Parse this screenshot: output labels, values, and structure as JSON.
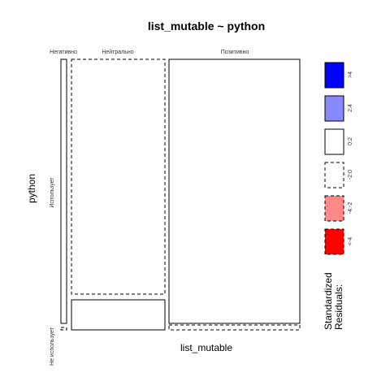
{
  "chart_data": {
    "type": "mosaic",
    "title": "list_mutable ~ python",
    "xlabel": "list_mutable",
    "ylabel": "python",
    "x_categories": [
      "Негативно",
      "Нейтрально",
      "Позитивно"
    ],
    "y_categories": [
      "Использует",
      "Не использует"
    ],
    "cells": [
      {
        "x": "Негативно",
        "y": "Использует",
        "residual_class": "0:2",
        "border": "solid"
      },
      {
        "x": "Негативно",
        "y": "Не использует",
        "residual_class": "-2:0",
        "border": "dashed"
      },
      {
        "x": "Нейтрально",
        "y": "Использует",
        "residual_class": "-2:0",
        "border": "dashed"
      },
      {
        "x": "Нейтрально",
        "y": "Не использует",
        "residual_class": "0:2",
        "border": "solid"
      },
      {
        "x": "Позитивно",
        "y": "Использует",
        "residual_class": "0:2",
        "border": "solid"
      },
      {
        "x": "Позитивно",
        "y": "Не использует",
        "residual_class": "-2:0",
        "border": "dashed"
      }
    ],
    "legend": {
      "title_lines": [
        "Standardized",
        "Residuals:"
      ],
      "placement": "right",
      "items": [
        {
          "label": ">4",
          "color": "#0000ff",
          "border": "solid"
        },
        {
          "label": "2:4",
          "color": "#8888ff",
          "border": "solid"
        },
        {
          "label": "0:2",
          "color": "#ffffff",
          "border": "solid"
        },
        {
          "label": "-2:0",
          "color": "#ffffff",
          "border": "dashed"
        },
        {
          "label": "-4:-2",
          "color": "#ff8888",
          "border": "dashed"
        },
        {
          "label": "<-4",
          "color": "#ff0000",
          "border": "dashed"
        }
      ]
    }
  }
}
